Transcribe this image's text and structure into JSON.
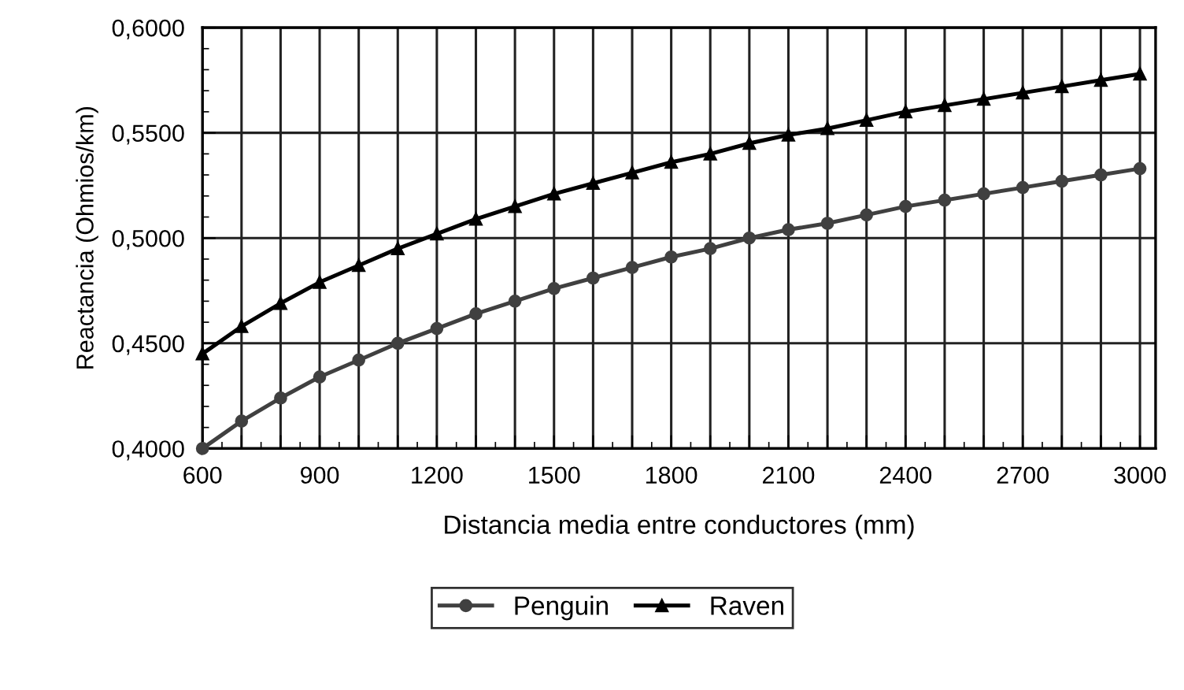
{
  "chart_data": {
    "type": "line",
    "xlabel": "Distancia media entre conductores (mm)",
    "ylabel": "Reactancia (Ohmios/km)",
    "x": [
      600,
      700,
      800,
      900,
      1000,
      1100,
      1200,
      1300,
      1400,
      1500,
      1600,
      1700,
      1800,
      1900,
      2000,
      2100,
      2200,
      2300,
      2400,
      2500,
      2600,
      2700,
      2800,
      2900,
      3000
    ],
    "series": [
      {
        "name": "Penguin",
        "color": "#404040",
        "marker": "circle",
        "values": [
          0.4,
          0.413,
          0.424,
          0.434,
          0.442,
          0.45,
          0.457,
          0.464,
          0.47,
          0.476,
          0.481,
          0.486,
          0.491,
          0.495,
          0.5,
          0.504,
          0.507,
          0.511,
          0.515,
          0.518,
          0.521,
          0.524,
          0.527,
          0.53,
          0.533
        ]
      },
      {
        "name": "Raven",
        "color": "#000000",
        "marker": "triangle",
        "values": [
          0.445,
          0.458,
          0.469,
          0.479,
          0.487,
          0.495,
          0.502,
          0.509,
          0.515,
          0.521,
          0.526,
          0.531,
          0.536,
          0.54,
          0.545,
          0.549,
          0.552,
          0.556,
          0.56,
          0.563,
          0.566,
          0.569,
          0.572,
          0.575,
          0.578
        ]
      }
    ],
    "xlim": [
      600,
      3040
    ],
    "xticks": [
      600,
      {
        "value": 700,
        "label": null
      },
      {
        "value": 800,
        "label": null
      },
      900,
      {
        "value": 1000,
        "label": null
      },
      {
        "value": 1100,
        "label": null
      },
      1200,
      {
        "value": 1300,
        "label": null
      },
      {
        "value": 1400,
        "label": null
      },
      1500,
      {
        "value": 1600,
        "label": null
      },
      {
        "value": 1700,
        "label": null
      },
      1800,
      {
        "value": 1900,
        "label": null
      },
      {
        "value": 2000,
        "label": null
      },
      2100,
      {
        "value": 2200,
        "label": null
      },
      {
        "value": 2300,
        "label": null
      },
      2400,
      {
        "value": 2500,
        "label": null
      },
      {
        "value": 2600,
        "label": null
      },
      2700,
      {
        "value": 2800,
        "label": null
      },
      {
        "value": 2900,
        "label": null
      },
      3000
    ],
    "ylim": [
      0.4,
      0.6
    ],
    "yticks": [
      {
        "value": 0.4,
        "label": "0,4000"
      },
      {
        "value": 0.45,
        "label": "0,4500"
      },
      {
        "value": 0.5,
        "label": "0,5000"
      },
      {
        "value": 0.55,
        "label": "0,5500"
      },
      {
        "value": 0.6,
        "label": "0,6000"
      }
    ],
    "grid": true,
    "legend": "bottom",
    "line_style": "solid"
  }
}
